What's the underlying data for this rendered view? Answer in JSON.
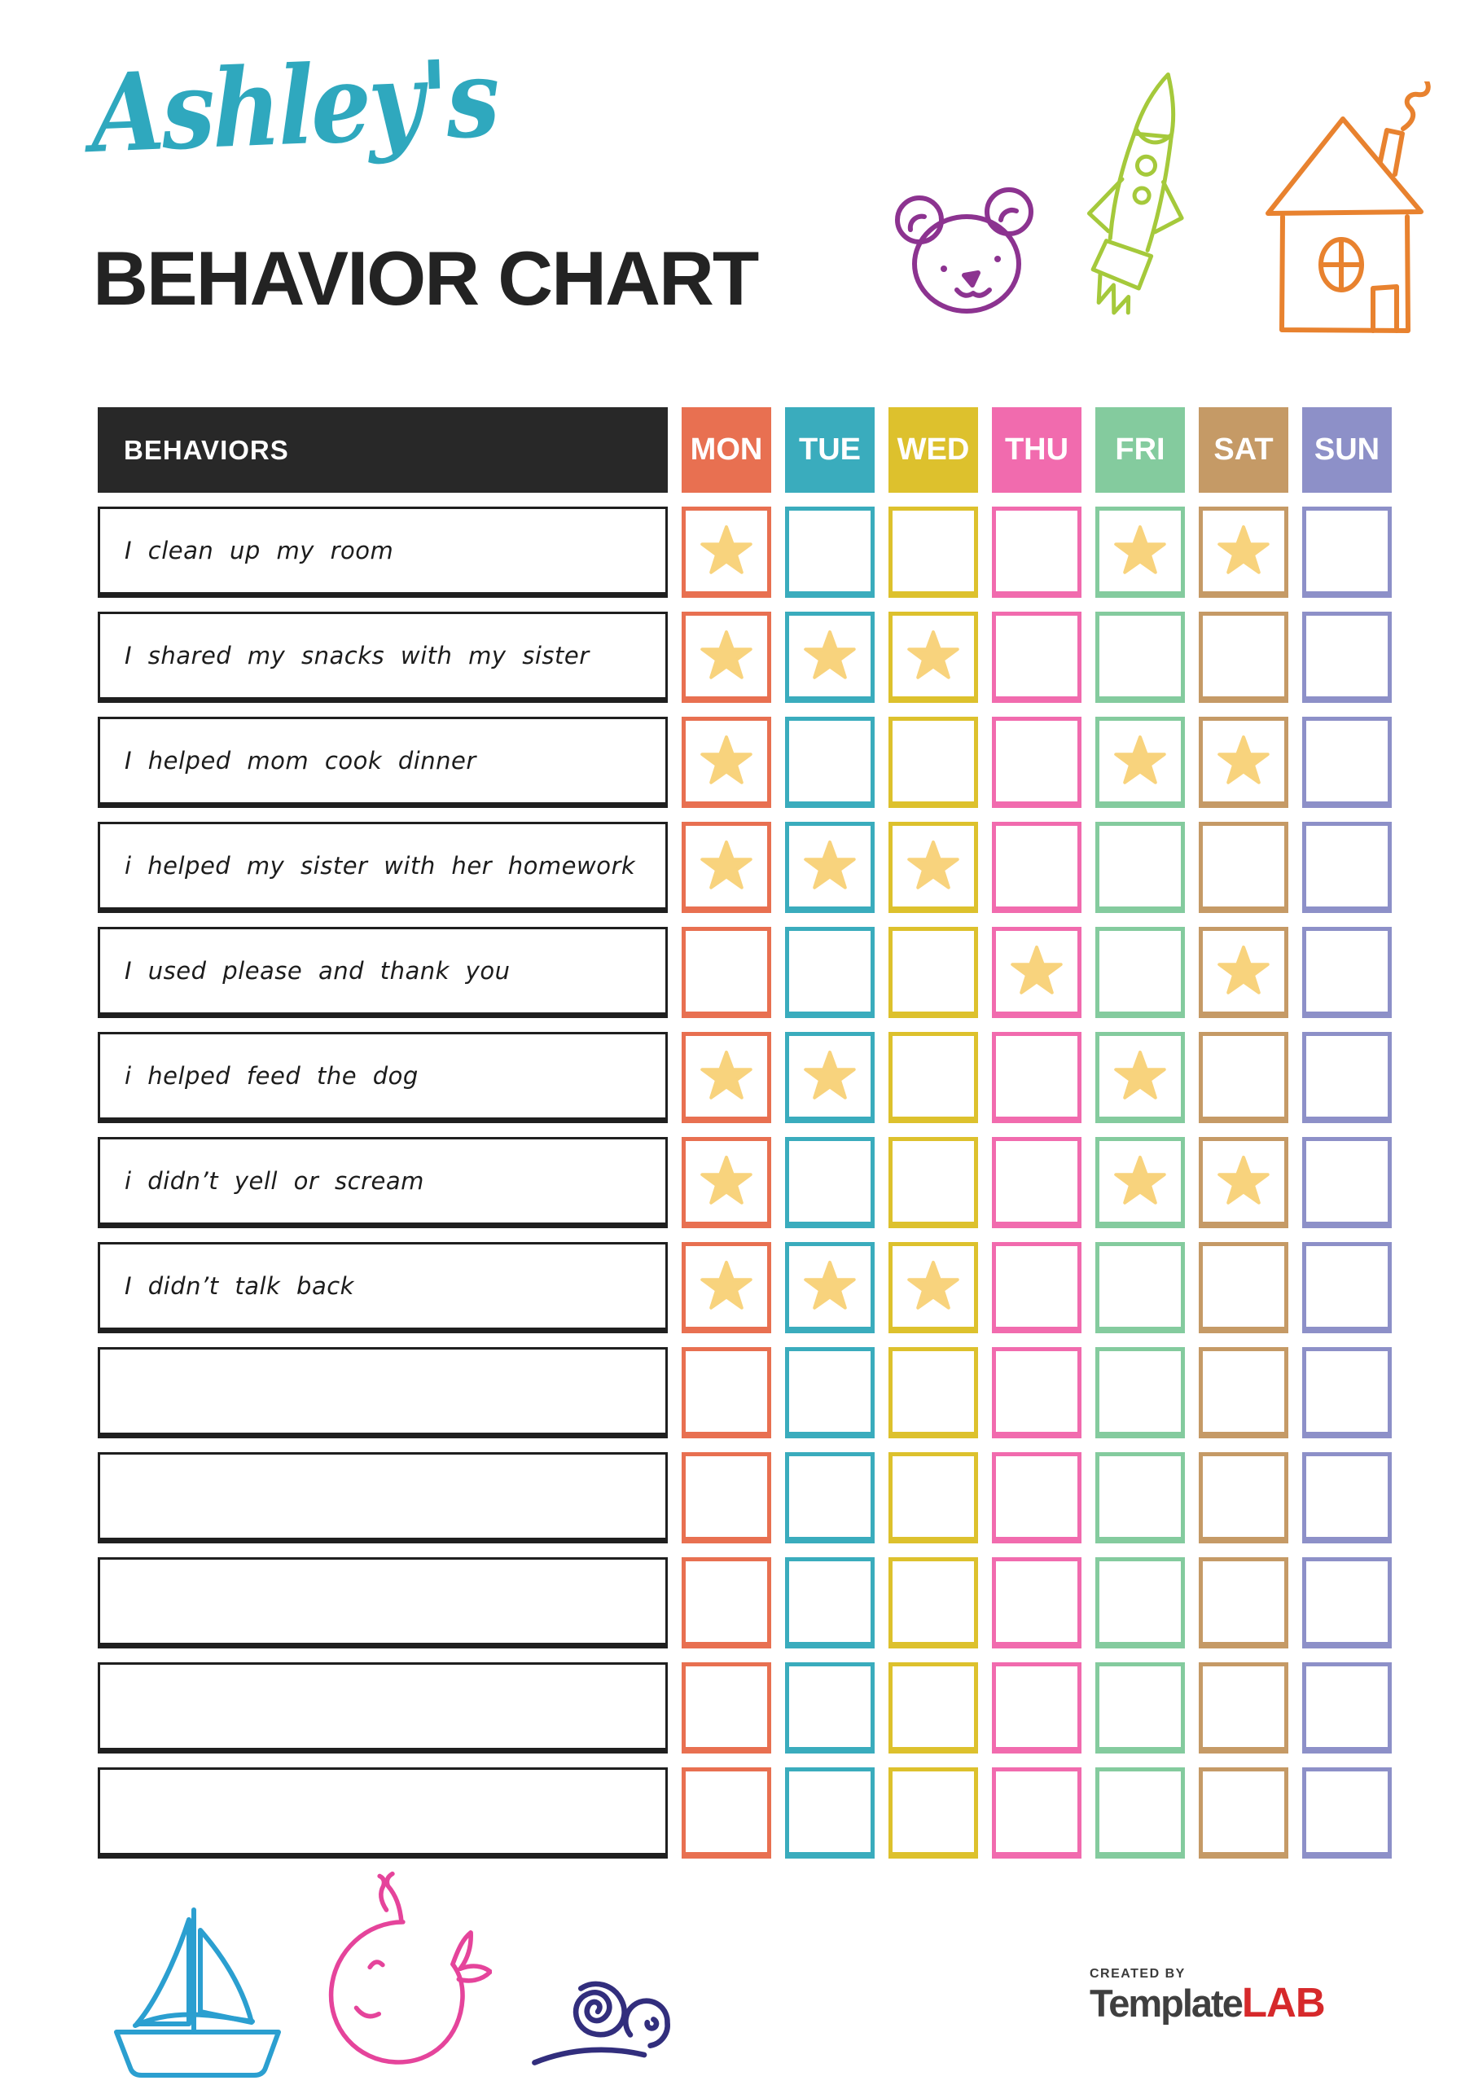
{
  "header": {
    "name_script": "Ashley's",
    "name_color": "#2FA8BE",
    "title": "BEHAVIOR CHART",
    "title_color": "#232323",
    "doodles": [
      "bear-icon",
      "rocket-icon",
      "house-icon"
    ],
    "doodle_colors": {
      "bear": "#8C3390",
      "rocket": "#A5C93B",
      "house": "#E8822F"
    }
  },
  "chart": {
    "behaviors_header": "BEHAVIORS",
    "header_bg": "#282828",
    "star_color": "#F8D37D",
    "days": [
      {
        "label": "MON",
        "color": "#E87051"
      },
      {
        "label": "TUE",
        "color": "#3AACBD"
      },
      {
        "label": "WED",
        "color": "#DDC12D"
      },
      {
        "label": "THU",
        "color": "#F16BAE"
      },
      {
        "label": "FRI",
        "color": "#84CB9E"
      },
      {
        "label": "SAT",
        "color": "#C59A66"
      },
      {
        "label": "SUN",
        "color": "#8D90C8"
      }
    ],
    "rows": [
      {
        "behavior": "I clean up my room",
        "stars": [
          1,
          0,
          0,
          0,
          1,
          1,
          0
        ]
      },
      {
        "behavior": "I shared my snacks with my sister",
        "stars": [
          1,
          1,
          1,
          0,
          0,
          0,
          0
        ]
      },
      {
        "behavior": "I helped mom cook dinner",
        "stars": [
          1,
          0,
          0,
          0,
          1,
          1,
          0
        ]
      },
      {
        "behavior": "i helped my sister with her homework",
        "stars": [
          1,
          1,
          1,
          0,
          0,
          0,
          0
        ]
      },
      {
        "behavior": "I used please and thank you",
        "stars": [
          0,
          0,
          0,
          1,
          0,
          1,
          0
        ]
      },
      {
        "behavior": "i helped feed the dog",
        "stars": [
          1,
          1,
          0,
          0,
          1,
          0,
          0
        ]
      },
      {
        "behavior": "i didn’t yell or scream",
        "stars": [
          1,
          0,
          0,
          0,
          1,
          1,
          0
        ]
      },
      {
        "behavior": "I didn’t talk back",
        "stars": [
          1,
          1,
          1,
          0,
          0,
          0,
          0
        ]
      },
      {
        "behavior": "",
        "stars": [
          0,
          0,
          0,
          0,
          0,
          0,
          0
        ]
      },
      {
        "behavior": "",
        "stars": [
          0,
          0,
          0,
          0,
          0,
          0,
          0
        ]
      },
      {
        "behavior": "",
        "stars": [
          0,
          0,
          0,
          0,
          0,
          0,
          0
        ]
      },
      {
        "behavior": "",
        "stars": [
          0,
          0,
          0,
          0,
          0,
          0,
          0
        ]
      },
      {
        "behavior": "",
        "stars": [
          0,
          0,
          0,
          0,
          0,
          0,
          0
        ]
      }
    ]
  },
  "footer": {
    "created_by": "CREATED BY",
    "brand_main": "Template",
    "brand_accent": "LAB",
    "brand_accent_color": "#D6292B",
    "doodles": [
      "sailboat-icon",
      "whale-icon",
      "snail-icon"
    ],
    "doodle_colors": {
      "sailboat": "#2B9FD0",
      "whale": "#E5449B",
      "snail": "#322E7D"
    }
  }
}
